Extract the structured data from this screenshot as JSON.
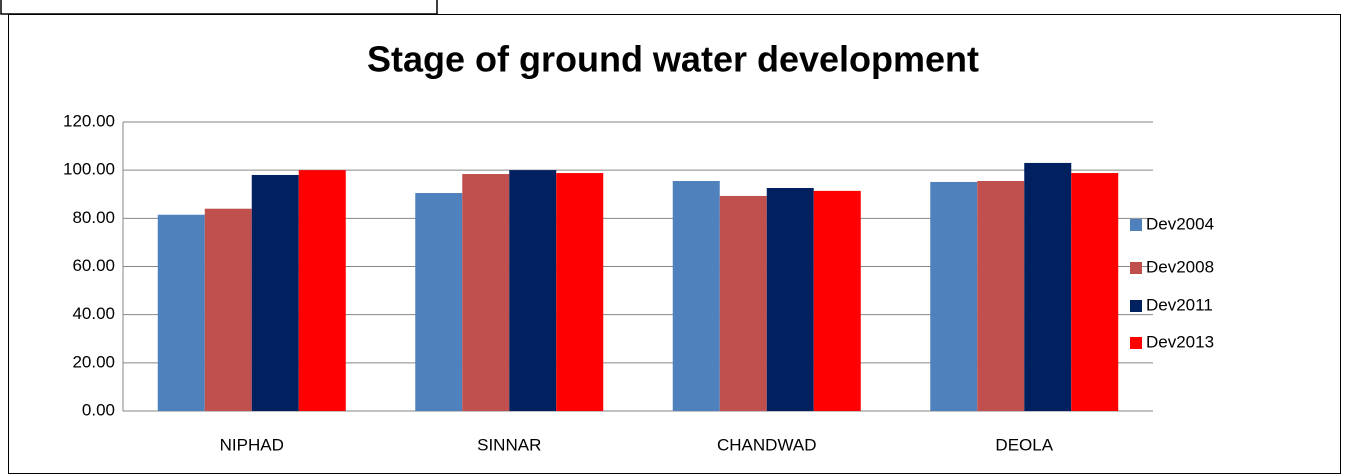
{
  "chart_data": {
    "type": "bar",
    "title": "Stage of ground water development",
    "categories": [
      "NIPHAD",
      "SINNAR",
      "CHANDWAD",
      "DEOLA"
    ],
    "series": [
      {
        "name": "Dev2004",
        "color": "#4f81bd",
        "values": [
          81.5,
          90.5,
          95.5,
          95.1
        ]
      },
      {
        "name": "Dev2008",
        "color": "#c0504d",
        "values": [
          84.0,
          98.4,
          89.3,
          95.5
        ]
      },
      {
        "name": "Dev2011",
        "color": "#002060",
        "values": [
          98.0,
          100.0,
          92.6,
          103.0
        ]
      },
      {
        "name": "Dev2013",
        "color": "#ff0000",
        "values": [
          100.0,
          98.8,
          91.4,
          98.8
        ]
      }
    ],
    "ylim": [
      0,
      120
    ],
    "yticks": [
      {
        "value": 0,
        "label": "0.00"
      },
      {
        "value": 20,
        "label": "20.00"
      },
      {
        "value": 40,
        "label": "40.00"
      },
      {
        "value": 60,
        "label": "60.00"
      },
      {
        "value": 80,
        "label": "80.00"
      },
      {
        "value": 100,
        "label": "100.00"
      },
      {
        "value": 120,
        "label": "120.00"
      }
    ],
    "grid": true,
    "legend": "right"
  }
}
